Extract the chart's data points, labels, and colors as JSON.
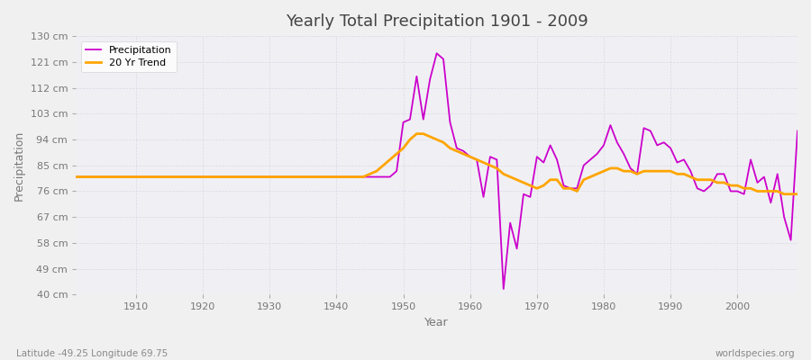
{
  "title": "Yearly Total Precipitation 1901 - 2009",
  "xlabel": "Year",
  "ylabel": "Precipitation",
  "subtitle_left": "Latitude -49.25 Longitude 69.75",
  "subtitle_right": "worldspecies.org",
  "ylim": [
    40,
    130
  ],
  "yticks": [
    40,
    49,
    58,
    67,
    76,
    85,
    94,
    103,
    112,
    121,
    130
  ],
  "ytick_labels": [
    "40 cm",
    "49 cm",
    "58 cm",
    "67 cm",
    "76 cm",
    "85 cm",
    "94 cm",
    "103 cm",
    "112 cm",
    "121 cm",
    "130 cm"
  ],
  "xlim": [
    1901,
    2009
  ],
  "xticks": [
    1910,
    1920,
    1930,
    1940,
    1950,
    1960,
    1970,
    1980,
    1990,
    2000
  ],
  "fig_bg_color": "#f0f0f0",
  "plot_bg_color": "#f0f0f4",
  "grid_color": "#d8d8e8",
  "precip_color": "#cc00cc",
  "trend_color": "#FFA500",
  "legend_labels": [
    "Precipitation",
    "20 Yr Trend"
  ],
  "years": [
    1901,
    1902,
    1903,
    1904,
    1905,
    1906,
    1907,
    1908,
    1909,
    1910,
    1911,
    1912,
    1913,
    1914,
    1915,
    1916,
    1917,
    1918,
    1919,
    1920,
    1921,
    1922,
    1923,
    1924,
    1925,
    1926,
    1927,
    1928,
    1929,
    1930,
    1931,
    1932,
    1933,
    1934,
    1935,
    1936,
    1937,
    1938,
    1939,
    1940,
    1941,
    1942,
    1943,
    1944,
    1945,
    1946,
    1947,
    1948,
    1949,
    1950,
    1951,
    1952,
    1953,
    1954,
    1955,
    1956,
    1957,
    1958,
    1959,
    1960,
    1961,
    1962,
    1963,
    1964,
    1965,
    1966,
    1967,
    1968,
    1969,
    1970,
    1971,
    1972,
    1973,
    1974,
    1975,
    1976,
    1977,
    1978,
    1979,
    1980,
    1981,
    1982,
    1983,
    1984,
    1985,
    1986,
    1987,
    1988,
    1989,
    1990,
    1991,
    1992,
    1993,
    1994,
    1995,
    1996,
    1997,
    1998,
    1999,
    2000,
    2001,
    2002,
    2003,
    2004,
    2005,
    2006,
    2007,
    2008,
    2009
  ],
  "precip": [
    81,
    81,
    81,
    81,
    81,
    81,
    81,
    81,
    81,
    81,
    81,
    81,
    81,
    81,
    81,
    81,
    81,
    81,
    81,
    81,
    81,
    81,
    81,
    81,
    81,
    81,
    81,
    81,
    81,
    81,
    81,
    81,
    81,
    81,
    81,
    81,
    81,
    81,
    81,
    81,
    81,
    81,
    81,
    81,
    81,
    81,
    81,
    81,
    83,
    100,
    101,
    116,
    101,
    115,
    124,
    122,
    100,
    91,
    90,
    88,
    87,
    74,
    88,
    87,
    42,
    65,
    56,
    75,
    74,
    88,
    86,
    92,
    87,
    78,
    77,
    77,
    85,
    87,
    89,
    92,
    99,
    93,
    89,
    84,
    82,
    98,
    97,
    92,
    93,
    91,
    86,
    87,
    83,
    77,
    76,
    78,
    82,
    82,
    76,
    76,
    75,
    87,
    79,
    81,
    72,
    82,
    67,
    59,
    97
  ],
  "trend": [
    81,
    81,
    81,
    81,
    81,
    81,
    81,
    81,
    81,
    81,
    81,
    81,
    81,
    81,
    81,
    81,
    81,
    81,
    81,
    81,
    81,
    81,
    81,
    81,
    81,
    81,
    81,
    81,
    81,
    81,
    81,
    81,
    81,
    81,
    81,
    81,
    81,
    81,
    81,
    81,
    81,
    81,
    81,
    81,
    82,
    83,
    85,
    87,
    89,
    91,
    94,
    96,
    96,
    95,
    94,
    93,
    91,
    90,
    89,
    88,
    87,
    86,
    85,
    84,
    82,
    81,
    80,
    79,
    78,
    77,
    78,
    80,
    80,
    77,
    77,
    76,
    80,
    81,
    82,
    83,
    84,
    84,
    83,
    83,
    82,
    83,
    83,
    83,
    83,
    83,
    82,
    82,
    81,
    80,
    80,
    80,
    79,
    79,
    78,
    78,
    77,
    77,
    76,
    76,
    76,
    76,
    75,
    75,
    75
  ]
}
